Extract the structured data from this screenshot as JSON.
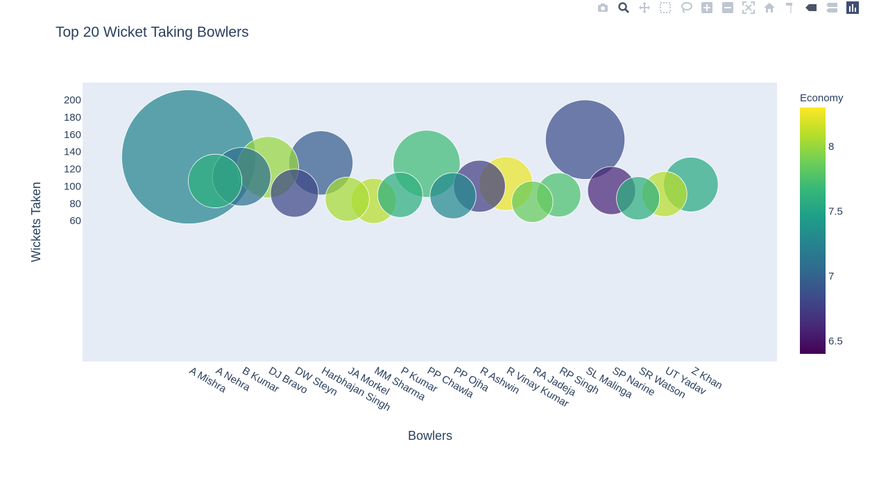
{
  "toolbar": {
    "buttons": [
      "camera-icon",
      "zoom-icon",
      "pan-icon",
      "box-select-icon",
      "lasso-select-icon",
      "zoom-in-icon",
      "zoom-out-icon",
      "autoscale-icon",
      "reset-axes-icon",
      "spike-lines-icon",
      "hover-closest-icon",
      "hover-compare-icon",
      "plotly-logo-icon"
    ]
  },
  "chart_data": {
    "type": "scatter",
    "title": "Top 20 Wicket Taking Bowlers",
    "xlabel": "Bowlers",
    "ylabel": "Wickets Taken",
    "ylim": [
      50,
      210
    ],
    "yticks": [
      60,
      80,
      100,
      120,
      140,
      160,
      180,
      200
    ],
    "grid": false,
    "colorbar": {
      "title": "Economy",
      "range": [
        6.4,
        8.3
      ],
      "ticks": [
        6.5,
        7,
        7.5,
        8
      ],
      "colorscale": "viridis"
    },
    "categories": [
      "A Mishra",
      "A Nehra",
      "B Kumar",
      "DJ Bravo",
      "DW Steyn",
      "Harbhajan Singh",
      "JA Morkel",
      "MM Sharma",
      "P Kumar",
      "PP Chawla",
      "PP Ojha",
      "R Ashwin",
      "R Vinay Kumar",
      "RA Jadeja",
      "RP Singh",
      "SL Malinga",
      "SP Narine",
      "SR Watson",
      "UT Yadav",
      "Z Khan"
    ],
    "values": [
      134,
      106,
      111,
      122,
      92,
      127,
      85,
      83,
      90,
      126,
      89,
      100,
      103,
      82,
      90,
      154,
      95,
      86,
      91,
      102
    ],
    "economy": [
      7.25,
      7.6,
      7.1,
      8.0,
      6.8,
      6.95,
      8.05,
      8.1,
      7.6,
      7.7,
      7.3,
      6.75,
      8.25,
      7.85,
      7.75,
      6.85,
      6.6,
      7.6,
      8.1,
      7.55
    ],
    "size_values": [
      140,
      56,
      61,
      64,
      50,
      67,
      46,
      47,
      47,
      70,
      48,
      54,
      56,
      43,
      46,
      83,
      50,
      45,
      47,
      57
    ]
  }
}
